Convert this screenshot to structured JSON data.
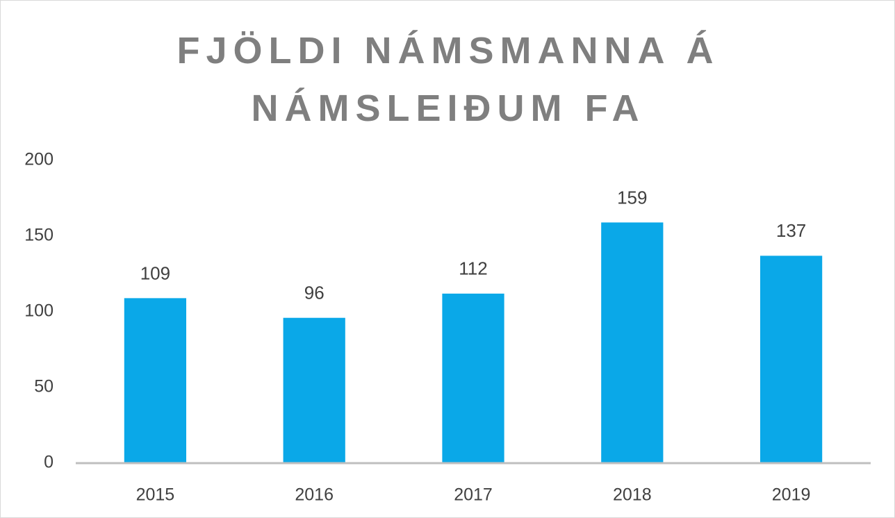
{
  "chart_data": {
    "type": "bar",
    "title": "FJÖLDI NÁMSMANNA Á NÁMSLEIÐUM FA",
    "categories": [
      "2015",
      "2016",
      "2017",
      "2018",
      "2019"
    ],
    "values": [
      109,
      96,
      112,
      159,
      137
    ],
    "color": "#0aa8e8",
    "ylim": [
      0,
      200
    ],
    "yticks": [
      0,
      50,
      100,
      150,
      200
    ],
    "grid": false
  }
}
